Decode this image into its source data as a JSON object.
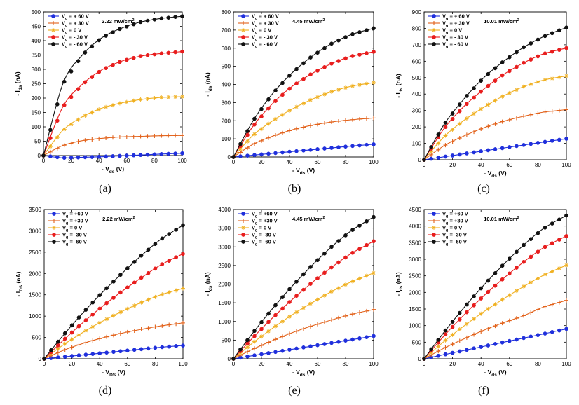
{
  "figure": {
    "colors": {
      "vg_pos60": "#1f2fdc",
      "vg_pos30": "#e2621b",
      "vg_0": "#f0b020",
      "vg_neg30": "#e81d1d",
      "vg_neg60": "#111111"
    },
    "legend_labels": [
      "V",
      "g",
      "= + 60 V",
      "= + 30 V",
      "= 0 V",
      "= - 30 V",
      "= - 60 V"
    ],
    "intensity_unit_sup": "2"
  },
  "chart_data": [
    {
      "panel": "(a)",
      "type": "line",
      "intensity": "2.22 mW/cm",
      "intensity_sup": "2",
      "xlabel": "- V",
      "xlabel_sub": "ds",
      "xlabel_unit": "(V)",
      "ylabel": "- I",
      "ylabel_sub": "ds",
      "ylabel_unit": "(nA)",
      "xlim": [
        0,
        100
      ],
      "ylim": [
        0,
        500
      ],
      "xticks": [
        "0",
        "20",
        "40",
        "60",
        "80",
        "100"
      ],
      "yticks": [
        "0",
        "50",
        "100",
        "150",
        "200",
        "250",
        "300",
        "350",
        "400",
        "450",
        "500"
      ],
      "legend_prefix_spaced": true,
      "series": [
        {
          "name": "Vg = + 60 V",
          "values": [
            0,
            -8,
            -6,
            -4,
            -1,
            2,
            5,
            8
          ]
        },
        {
          "name": "Vg = + 30 V",
          "values": [
            0,
            35,
            52,
            60,
            65,
            67,
            69,
            70
          ]
        },
        {
          "name": "Vg = 0 V",
          "values": [
            0,
            88,
            135,
            165,
            183,
            195,
            202,
            205
          ]
        },
        {
          "name": "Vg = - 30 V",
          "values": [
            0,
            170,
            248,
            298,
            328,
            346,
            355,
            362
          ]
        },
        {
          "name": "Vg = - 60 V",
          "values": [
            0,
            250,
            350,
            410,
            443,
            465,
            477,
            485
          ]
        }
      ],
      "x": [
        0,
        14,
        28,
        42,
        56,
        70,
        84,
        100
      ]
    },
    {
      "panel": "(b)",
      "type": "line",
      "intensity": "4.45 mW/cm",
      "intensity_sup": "2",
      "xlabel": "- V",
      "xlabel_sub": "ds",
      "xlabel_unit": "(V)",
      "ylabel": "- I",
      "ylabel_sub": "ds",
      "ylabel_unit": "(nA)",
      "xlim": [
        0,
        100
      ],
      "ylim": [
        0,
        800
      ],
      "xticks": [
        "0",
        "20",
        "40",
        "60",
        "80",
        "100"
      ],
      "yticks": [
        "0",
        "100",
        "200",
        "300",
        "400",
        "500",
        "600",
        "700",
        "800"
      ],
      "legend_prefix_spaced": true,
      "series": [
        {
          "name": "Vg = + 60 V",
          "values": [
            0,
            10,
            20,
            30,
            40,
            50,
            60,
            70
          ]
        },
        {
          "name": "Vg = + 30 V",
          "values": [
            0,
            70,
            115,
            150,
            175,
            193,
            205,
            215
          ]
        },
        {
          "name": "Vg = 0 V",
          "values": [
            0,
            120,
            200,
            265,
            318,
            360,
            390,
            410
          ]
        },
        {
          "name": "Vg = - 30 V",
          "values": [
            0,
            170,
            295,
            390,
            460,
            515,
            555,
            580
          ]
        },
        {
          "name": "Vg = - 60 V",
          "values": [
            0,
            200,
            350,
            465,
            555,
            625,
            675,
            710
          ]
        }
      ],
      "x": [
        0,
        14,
        28,
        42,
        56,
        70,
        84,
        100
      ]
    },
    {
      "panel": "(c)",
      "type": "line",
      "intensity": "10.01 mW/cm",
      "intensity_sup": "2",
      "xlabel": "- V",
      "xlabel_sub": "ds",
      "xlabel_unit": "(V)",
      "ylabel": "- I",
      "ylabel_sub": "ds",
      "ylabel_unit": "(nA)",
      "xlim": [
        0,
        100
      ],
      "ylim": [
        0,
        900
      ],
      "xticks": [
        "0",
        "20",
        "40",
        "60",
        "80",
        "100"
      ],
      "yticks": [
        "0",
        "100",
        "200",
        "300",
        "400",
        "500",
        "600",
        "700",
        "800",
        "900"
      ],
      "legend_prefix_spaced": true,
      "series": [
        {
          "name": "Vg = + 60 V",
          "values": [
            0,
            18,
            36,
            54,
            72,
            90,
            108,
            128
          ]
        },
        {
          "name": "Vg = + 30 V",
          "values": [
            0,
            85,
            145,
            195,
            235,
            265,
            290,
            305
          ]
        },
        {
          "name": "Vg = 0 V",
          "values": [
            0,
            140,
            240,
            320,
            390,
            445,
            485,
            510
          ]
        },
        {
          "name": "Vg = - 30 V",
          "values": [
            0,
            190,
            325,
            430,
            520,
            590,
            645,
            680
          ]
        },
        {
          "name": "Vg = - 60 V",
          "values": [
            0,
            215,
            370,
            500,
            600,
            685,
            750,
            805
          ]
        }
      ],
      "x": [
        0,
        14,
        28,
        42,
        56,
        70,
        84,
        100
      ]
    },
    {
      "panel": "(d)",
      "type": "line",
      "intensity": "2.22 mW/cm",
      "intensity_sup": "2",
      "xlabel": "- V",
      "xlabel_sub": "DS",
      "xlabel_unit": "(V)",
      "ylabel": "- I",
      "ylabel_sub": "DS",
      "ylabel_unit": "(nA)",
      "xlim": [
        0,
        100
      ],
      "ylim": [
        0,
        3500
      ],
      "xticks": [
        "0",
        "20",
        "40",
        "60",
        "80",
        "100"
      ],
      "yticks": [
        "0",
        "500",
        "1000",
        "1500",
        "2000",
        "2500",
        "3000",
        "3500"
      ],
      "legend_prefix_spaced": false,
      "series": [
        {
          "name": "Vg = +60 V",
          "values": [
            0,
            45,
            90,
            135,
            180,
            225,
            270,
            310
          ]
        },
        {
          "name": "Vg = +30 V",
          "values": [
            0,
            200,
            360,
            490,
            600,
            690,
            770,
            840
          ]
        },
        {
          "name": "Vg = 0 V",
          "values": [
            0,
            330,
            620,
            880,
            1110,
            1320,
            1500,
            1650
          ]
        },
        {
          "name": "Vg = -30 V",
          "values": [
            0,
            440,
            850,
            1230,
            1580,
            1900,
            2200,
            2460
          ]
        },
        {
          "name": "Vg = -60 V",
          "values": [
            0,
            560,
            1080,
            1560,
            2000,
            2420,
            2800,
            3130
          ]
        }
      ],
      "x": [
        0,
        14,
        28,
        42,
        56,
        70,
        84,
        100
      ]
    },
    {
      "panel": "(e)",
      "type": "line",
      "intensity": "4.45 mW/cm",
      "intensity_sup": "2",
      "xlabel": "- V",
      "xlabel_sub": "ds",
      "xlabel_unit": "(V)",
      "ylabel": "- I",
      "ylabel_sub": "ds",
      "ylabel_unit": "(nA)",
      "xlim": [
        0,
        100
      ],
      "ylim": [
        0,
        4000
      ],
      "xticks": [
        "0",
        "20",
        "40",
        "60",
        "80",
        "100"
      ],
      "yticks": [
        "0",
        "500",
        "1000",
        "1500",
        "2000",
        "2500",
        "3000",
        "3500",
        "4000"
      ],
      "legend_prefix_spaced": false,
      "series": [
        {
          "name": "Vg = +60 V",
          "values": [
            0,
            85,
            170,
            255,
            340,
            425,
            510,
            610
          ]
        },
        {
          "name": "Vg = +30 V",
          "values": [
            0,
            260,
            490,
            700,
            880,
            1040,
            1190,
            1320
          ]
        },
        {
          "name": "Vg = 0 V",
          "values": [
            0,
            430,
            820,
            1180,
            1500,
            1800,
            2060,
            2300
          ]
        },
        {
          "name": "Vg = -30 V",
          "values": [
            0,
            570,
            1100,
            1590,
            2040,
            2450,
            2820,
            3150
          ]
        },
        {
          "name": "Vg = -60 V",
          "values": [
            0,
            700,
            1350,
            1950,
            2500,
            3000,
            3430,
            3800
          ]
        }
      ],
      "x": [
        0,
        14,
        28,
        42,
        56,
        70,
        84,
        100
      ]
    },
    {
      "panel": "(f)",
      "type": "line",
      "intensity": "10.01 mW/cm",
      "intensity_sup": "2",
      "xlabel": "- V",
      "xlabel_sub": "ds",
      "xlabel_unit": "(V)",
      "ylabel": "- I",
      "ylabel_sub": "ds",
      "ylabel_unit": "(nA)",
      "xlim": [
        0,
        100
      ],
      "ylim": [
        0,
        4500
      ],
      "xticks": [
        "0",
        "20",
        "40",
        "60",
        "80",
        "100"
      ],
      "yticks": [
        "0",
        "500",
        "1000",
        "1500",
        "2000",
        "2500",
        "3000",
        "3500",
        "4000",
        "4500"
      ],
      "legend_prefix_spaced": false,
      "series": [
        {
          "name": "Vg = +60 V",
          "values": [
            0,
            125,
            250,
            375,
            500,
            625,
            750,
            900
          ]
        },
        {
          "name": "Vg = +30 V",
          "values": [
            0,
            320,
            600,
            860,
            1090,
            1300,
            1560,
            1760
          ]
        },
        {
          "name": "Vg = 0 V",
          "values": [
            0,
            520,
            990,
            1420,
            1810,
            2180,
            2520,
            2820
          ]
        },
        {
          "name": "Vg = -30 V",
          "values": [
            0,
            690,
            1320,
            1900,
            2430,
            2920,
            3350,
            3700
          ]
        },
        {
          "name": "Vg = -60 V",
          "values": [
            0,
            800,
            1540,
            2220,
            2850,
            3430,
            3930,
            4320
          ]
        }
      ],
      "x": [
        0,
        14,
        28,
        42,
        56,
        70,
        84,
        100
      ]
    }
  ]
}
